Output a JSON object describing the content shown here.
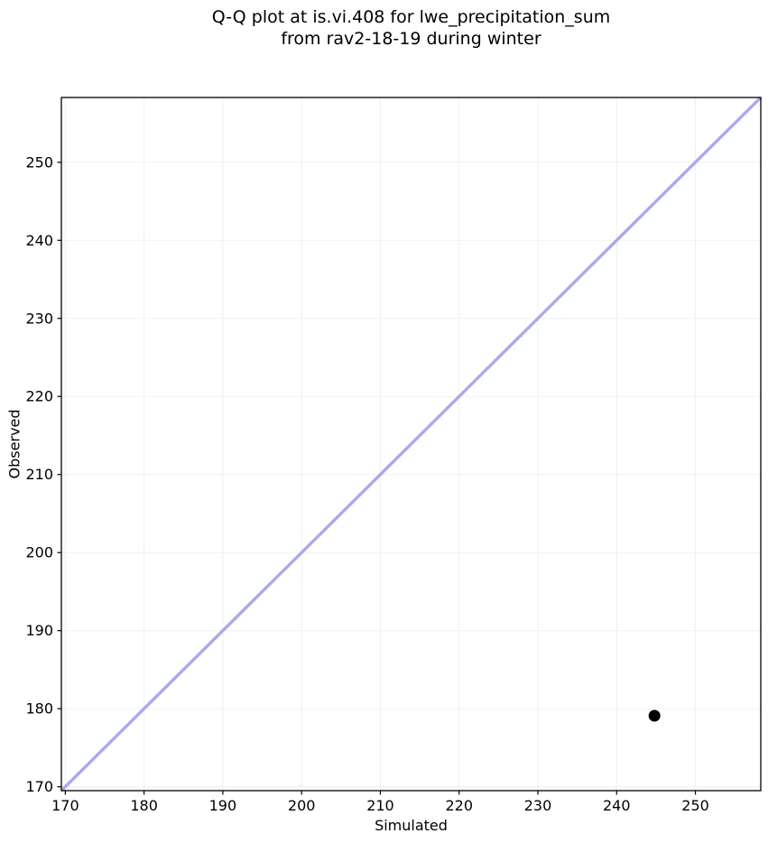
{
  "title": {
    "line1": "Q-Q plot at is.vi.408 for lwe_precipitation_sum",
    "line2": "from rav2-18-19 during winter"
  },
  "chart_data": {
    "type": "scatter",
    "title": "Q-Q plot at is.vi.408 for lwe_precipitation_sum\nfrom rav2-18-19 during winter",
    "xlabel": "Simulated",
    "ylabel": "Observed",
    "xlim": [
      169.5,
      258.3
    ],
    "ylim": [
      169.5,
      258.3
    ],
    "xticks": [
      170,
      180,
      190,
      200,
      210,
      220,
      230,
      240,
      250
    ],
    "yticks": [
      170,
      180,
      190,
      200,
      210,
      220,
      230,
      240,
      250
    ],
    "grid": true,
    "legend": "none",
    "series": [
      {
        "name": "identity-line",
        "kind": "line",
        "color": "#a9a9ee",
        "line_width": 3.4,
        "points": [
          [
            169.5,
            169.5
          ],
          [
            258.3,
            258.3
          ]
        ]
      },
      {
        "name": "qq-points",
        "kind": "scatter",
        "color": "#000000",
        "marker_radius": 6.5,
        "points": [
          [
            244.8,
            179.1
          ]
        ]
      }
    ]
  },
  "colors": {
    "background": "#ffffff",
    "grid": "#f0f0f0",
    "spine": "#000000",
    "tick_label": "#000000",
    "reference_line": "#a9a9ee",
    "point": "#000000"
  }
}
